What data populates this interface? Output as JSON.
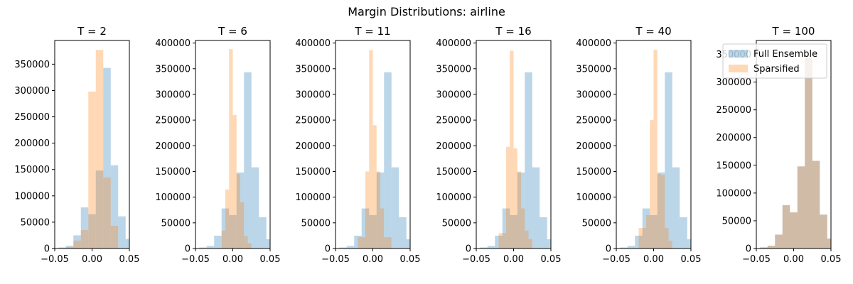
{
  "chart_data": {
    "title": "Margin Distributions: airline",
    "type": "histogram",
    "xlim": [
      -0.05,
      0.05
    ],
    "x_ticks": [
      -0.05,
      0.0,
      0.05
    ],
    "x_tick_labels": [
      "−0.05",
      "0.00",
      "0.05"
    ],
    "legend": {
      "placement": "upper-right of last panel",
      "entries": [
        {
          "label": "Full Ensemble",
          "color": "#1f77b4"
        },
        {
          "label": "Sparsified",
          "color": "#ff7f0e"
        }
      ]
    },
    "series_style": {
      "alpha": 0.3
    },
    "panels": [
      {
        "title": "T = 2",
        "ylim": [
          0,
          395000
        ],
        "y_ticks": [
          0,
          50000,
          100000,
          150000,
          200000,
          250000,
          300000,
          350000
        ],
        "full_ensemble": {
          "bin_edges": [
            -0.045,
            -0.035,
            -0.025,
            -0.015,
            -0.005,
            0.005,
            0.015,
            0.025,
            0.035,
            0.045,
            0.055
          ],
          "counts": [
            2000,
            5000,
            25000,
            78000,
            65000,
            148000,
            343000,
            158000,
            61000,
            18000
          ]
        },
        "sparsified": {
          "bin_edges": [
            -0.045,
            -0.035,
            -0.025,
            -0.015,
            -0.005,
            0.005,
            0.015,
            0.025,
            0.035
          ],
          "counts": [
            0,
            3000,
            15000,
            35000,
            298000,
            377000,
            135000,
            43000
          ]
        }
      },
      {
        "title": "T = 6",
        "ylim": [
          0,
          405000
        ],
        "y_ticks": [
          0,
          50000,
          100000,
          150000,
          200000,
          250000,
          300000,
          350000,
          400000
        ],
        "full_ensemble": {
          "bin_edges": [
            -0.045,
            -0.035,
            -0.025,
            -0.015,
            -0.005,
            0.005,
            0.015,
            0.025,
            0.035,
            0.045,
            0.055
          ],
          "counts": [
            2000,
            5000,
            25000,
            78000,
            65000,
            148000,
            343000,
            158000,
            61000,
            18000
          ]
        },
        "sparsified": {
          "bin_edges": [
            -0.015,
            -0.01,
            -0.005,
            0.0,
            0.005,
            0.01,
            0.015,
            0.02,
            0.025
          ],
          "counts": [
            35000,
            115000,
            388000,
            260000,
            145000,
            90000,
            24000,
            10000
          ]
        }
      },
      {
        "title": "T = 11",
        "ylim": [
          0,
          405000
        ],
        "y_ticks": [
          0,
          50000,
          100000,
          150000,
          200000,
          250000,
          300000,
          350000,
          400000
        ],
        "full_ensemble": {
          "bin_edges": [
            -0.045,
            -0.035,
            -0.025,
            -0.015,
            -0.005,
            0.005,
            0.015,
            0.025,
            0.035,
            0.045,
            0.055
          ],
          "counts": [
            2000,
            5000,
            25000,
            78000,
            65000,
            148000,
            343000,
            158000,
            61000,
            18000
          ]
        },
        "sparsified": {
          "bin_edges": [
            -0.02,
            -0.01,
            -0.005,
            0.0,
            0.005,
            0.01,
            0.015,
            0.025
          ],
          "counts": [
            22000,
            150000,
            386000,
            240000,
            150000,
            78000,
            22000
          ]
        }
      },
      {
        "title": "T = 16",
        "ylim": [
          0,
          405000
        ],
        "y_ticks": [
          0,
          50000,
          100000,
          150000,
          200000,
          250000,
          300000,
          350000,
          400000
        ],
        "full_ensemble": {
          "bin_edges": [
            -0.045,
            -0.035,
            -0.025,
            -0.015,
            -0.005,
            0.005,
            0.015,
            0.025,
            0.035,
            0.045,
            0.055
          ],
          "counts": [
            2000,
            5000,
            25000,
            78000,
            65000,
            148000,
            343000,
            158000,
            61000,
            18000
          ]
        },
        "sparsified": {
          "bin_edges": [
            -0.02,
            -0.01,
            -0.005,
            0.0,
            0.005,
            0.01,
            0.015,
            0.02,
            0.025
          ],
          "counts": [
            30000,
            198000,
            385000,
            195000,
            150000,
            78000,
            35000,
            18000
          ]
        }
      },
      {
        "title": "T = 40",
        "ylim": [
          0,
          405000
        ],
        "y_ticks": [
          0,
          50000,
          100000,
          150000,
          200000,
          250000,
          300000,
          350000,
          400000
        ],
        "full_ensemble": {
          "bin_edges": [
            -0.045,
            -0.035,
            -0.025,
            -0.015,
            -0.005,
            0.005,
            0.015,
            0.025,
            0.035,
            0.045,
            0.055
          ],
          "counts": [
            2000,
            5000,
            25000,
            78000,
            65000,
            148000,
            343000,
            158000,
            61000,
            18000
          ]
        },
        "sparsified": {
          "bin_edges": [
            -0.02,
            -0.01,
            -0.005,
            0.0,
            0.005,
            0.01,
            0.015,
            0.02,
            0.025
          ],
          "counts": [
            40000,
            65000,
            250000,
            387000,
            145000,
            143000,
            40000,
            15000
          ]
        }
      },
      {
        "title": "T = 100",
        "ylim": [
          0,
          375000
        ],
        "y_ticks": [
          0,
          50000,
          100000,
          150000,
          200000,
          250000,
          300000,
          350000
        ],
        "full_ensemble": {
          "bin_edges": [
            -0.045,
            -0.035,
            -0.025,
            -0.015,
            -0.005,
            0.005,
            0.015,
            0.025,
            0.035,
            0.045,
            0.055
          ],
          "counts": [
            2000,
            5000,
            25000,
            78000,
            65000,
            148000,
            343000,
            158000,
            61000,
            18000
          ]
        },
        "sparsified": {
          "bin_edges": [
            -0.045,
            -0.035,
            -0.025,
            -0.015,
            -0.005,
            0.005,
            0.015,
            0.025,
            0.035,
            0.045,
            0.055
          ],
          "counts": [
            2000,
            5000,
            25000,
            78000,
            65000,
            148000,
            343000,
            158000,
            61000,
            18000
          ]
        }
      }
    ]
  }
}
